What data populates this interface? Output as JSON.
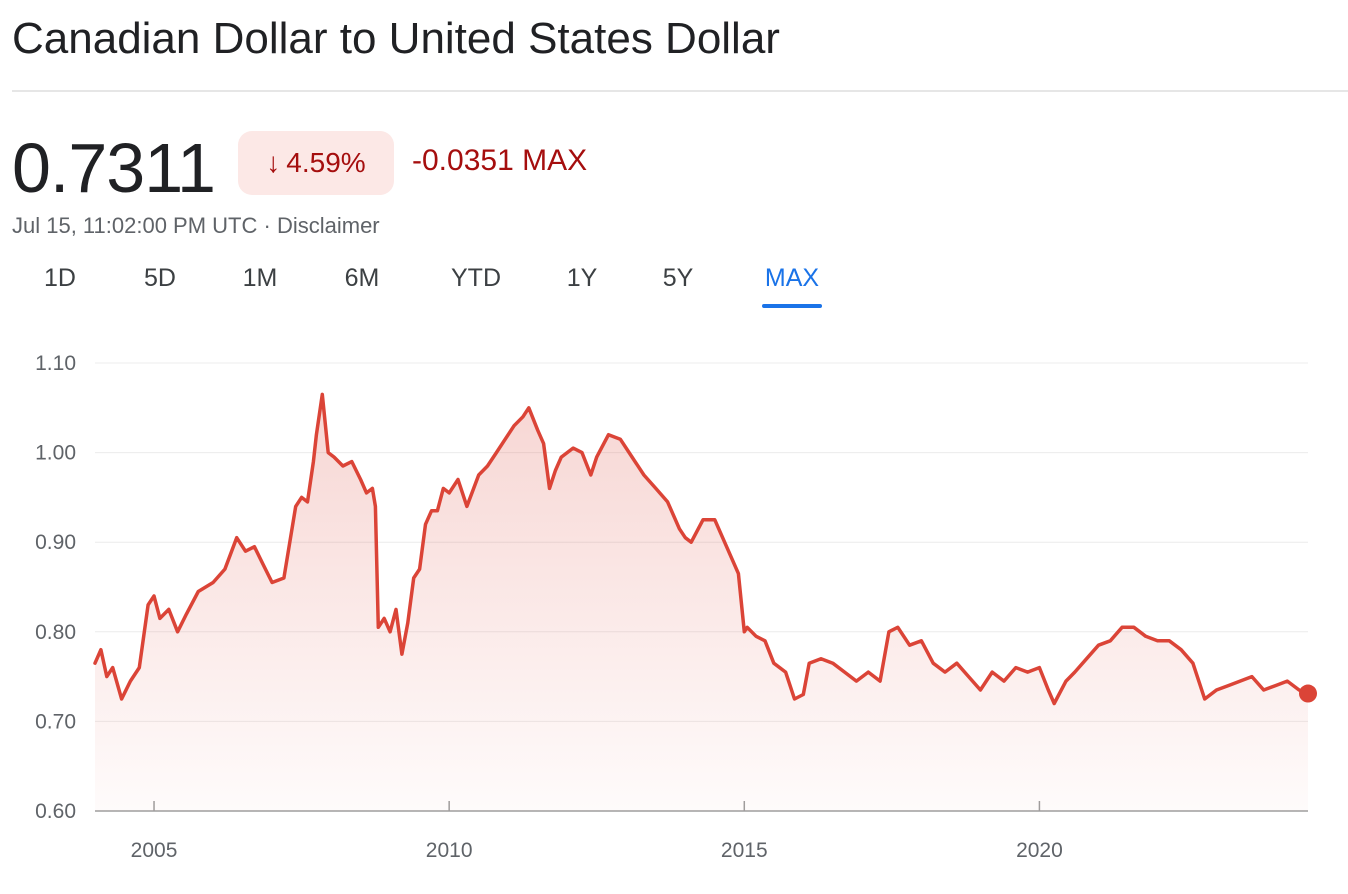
{
  "header": {
    "title": "Canadian Dollar to United States Dollar"
  },
  "quote": {
    "price": "0.7311",
    "change_percent": "4.59%",
    "change_arrow": "↓",
    "change_abs": "-0.0351 MAX",
    "timestamp": "Jul 15, 11:02:00 PM UTC",
    "separator": "·",
    "disclaimer": "Disclaimer"
  },
  "range_tabs": {
    "items": [
      "1D",
      "5D",
      "1M",
      "6M",
      "YTD",
      "1Y",
      "5Y",
      "MAX"
    ],
    "selected": "MAX"
  },
  "colors": {
    "line": "#db4437",
    "negative_text": "#a50e0e",
    "badge_bg": "#fce8e6",
    "accent": "#1a73e8"
  },
  "chart_data": {
    "type": "area",
    "title": "",
    "xlabel": "",
    "ylabel": "",
    "ylim": [
      0.6,
      1.1
    ],
    "yticks": [
      "1.10",
      "1.00",
      "0.90",
      "0.80",
      "0.70",
      "0.60"
    ],
    "xticks": [
      "2005",
      "2010",
      "2015",
      "2020"
    ],
    "grid": true,
    "series": [
      {
        "x": [
          2004.0,
          2004.1,
          2004.2,
          2004.3,
          2004.45,
          2004.6,
          2004.75,
          2004.9,
          2005.0,
          2005.1,
          2005.25,
          2005.4,
          2005.55,
          2005.75,
          2006.0,
          2006.2,
          2006.4,
          2006.55,
          2006.7,
          2006.85,
          2007.0,
          2007.2,
          2007.4,
          2007.5,
          2007.6,
          2007.7,
          2007.75,
          2007.85,
          2007.95,
          2008.05,
          2008.2,
          2008.35,
          2008.5,
          2008.6,
          2008.7,
          2008.75,
          2008.8,
          2008.9,
          2009.0,
          2009.1,
          2009.2,
          2009.3,
          2009.4,
          2009.5,
          2009.6,
          2009.7,
          2009.8,
          2009.9,
          2010.0,
          2010.15,
          2010.3,
          2010.5,
          2010.65,
          2010.8,
          2010.95,
          2011.1,
          2011.25,
          2011.35,
          2011.5,
          2011.6,
          2011.7,
          2011.8,
          2011.9,
          2012.1,
          2012.25,
          2012.4,
          2012.5,
          2012.7,
          2012.9,
          2013.1,
          2013.3,
          2013.5,
          2013.7,
          2013.9,
          2014.0,
          2014.1,
          2014.3,
          2014.5,
          2014.7,
          2014.9,
          2015.0,
          2015.05,
          2015.2,
          2015.35,
          2015.5,
          2015.7,
          2015.85,
          2016.0,
          2016.1,
          2016.3,
          2016.5,
          2016.7,
          2016.9,
          2017.1,
          2017.3,
          2017.45,
          2017.6,
          2017.8,
          2018.0,
          2018.2,
          2018.4,
          2018.6,
          2018.8,
          2019.0,
          2019.2,
          2019.4,
          2019.6,
          2019.8,
          2020.0,
          2020.15,
          2020.25,
          2020.45,
          2020.6,
          2020.8,
          2021.0,
          2021.2,
          2021.4,
          2021.6,
          2021.8,
          2022.0,
          2022.2,
          2022.4,
          2022.6,
          2022.8,
          2023.0,
          2023.2,
          2023.4,
          2023.6,
          2023.8,
          2024.0,
          2024.2,
          2024.4,
          2024.55
        ],
        "values": [
          0.765,
          0.78,
          0.75,
          0.76,
          0.725,
          0.745,
          0.76,
          0.83,
          0.84,
          0.815,
          0.825,
          0.8,
          0.82,
          0.845,
          0.855,
          0.87,
          0.905,
          0.89,
          0.895,
          0.875,
          0.855,
          0.86,
          0.94,
          0.95,
          0.945,
          0.99,
          1.02,
          1.065,
          1.0,
          0.995,
          0.985,
          0.99,
          0.97,
          0.955,
          0.96,
          0.94,
          0.805,
          0.815,
          0.8,
          0.825,
          0.775,
          0.81,
          0.86,
          0.87,
          0.92,
          0.935,
          0.935,
          0.96,
          0.955,
          0.97,
          0.94,
          0.975,
          0.985,
          1.0,
          1.015,
          1.03,
          1.04,
          1.05,
          1.025,
          1.01,
          0.96,
          0.98,
          0.995,
          1.005,
          1.0,
          0.975,
          0.995,
          1.02,
          1.015,
          0.995,
          0.975,
          0.96,
          0.945,
          0.915,
          0.905,
          0.9,
          0.925,
          0.925,
          0.895,
          0.865,
          0.8,
          0.805,
          0.795,
          0.79,
          0.765,
          0.755,
          0.725,
          0.73,
          0.765,
          0.77,
          0.765,
          0.755,
          0.745,
          0.755,
          0.745,
          0.8,
          0.805,
          0.785,
          0.79,
          0.765,
          0.755,
          0.765,
          0.75,
          0.735,
          0.755,
          0.745,
          0.76,
          0.755,
          0.76,
          0.735,
          0.72,
          0.745,
          0.755,
          0.77,
          0.785,
          0.79,
          0.805,
          0.805,
          0.795,
          0.79,
          0.79,
          0.78,
          0.765,
          0.725,
          0.735,
          0.74,
          0.745,
          0.75,
          0.735,
          0.74,
          0.745,
          0.735,
          0.7311
        ]
      }
    ]
  }
}
